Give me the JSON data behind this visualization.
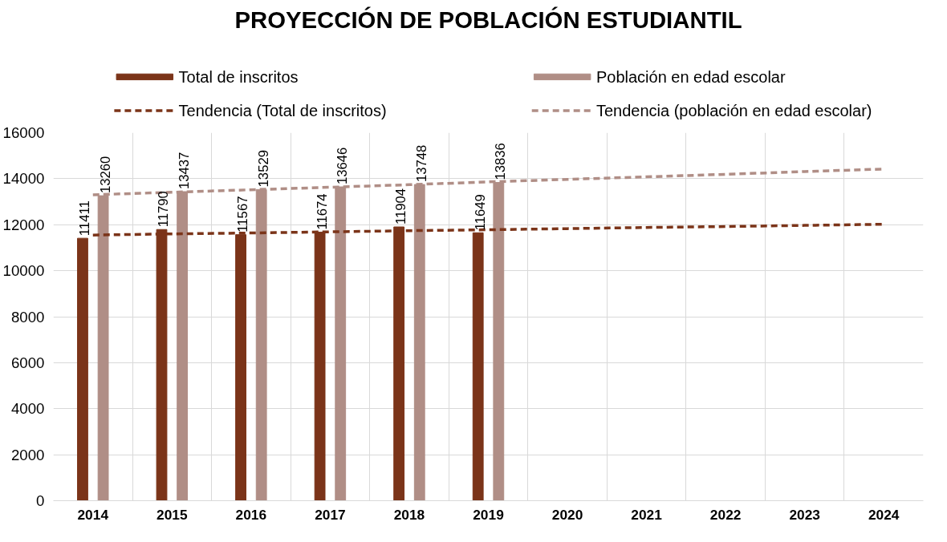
{
  "chart_data": {
    "type": "bar",
    "title": "PROYECCIÓN DE POBLACIÓN ESTUDIANTIL",
    "categories": [
      "2014",
      "2015",
      "2016",
      "2017",
      "2018",
      "2019",
      "2020",
      "2021",
      "2022",
      "2023",
      "2024"
    ],
    "series": [
      {
        "name": "Total de inscritos",
        "color": "#7b3419",
        "values": [
          11411,
          11790,
          11567,
          11674,
          11904,
          11649,
          null,
          null,
          null,
          null,
          null
        ],
        "value_labels": [
          "11411",
          "11790",
          "11567",
          "11674",
          "11904",
          "11649",
          null,
          null,
          null,
          null,
          null
        ]
      },
      {
        "name": "Población en edad escolar",
        "color": "#b08e86",
        "values": [
          13260,
          13437,
          13529,
          13646,
          13748,
          13836,
          null,
          null,
          null,
          null,
          null
        ],
        "value_labels": [
          "13260",
          "13437",
          "13529",
          "13646",
          "13748",
          "13836",
          null,
          null,
          null,
          null,
          null
        ]
      },
      {
        "name": "Tendencia (Total de inscritos)",
        "type": "line",
        "line_style": "dashed",
        "color": "#7b3419",
        "values": [
          11550,
          11600,
          11640,
          11690,
          11740,
          11780,
          11830,
          11880,
          11920,
          11970,
          12020
        ]
      },
      {
        "name": "Tendencia (población en edad escolar)",
        "type": "line",
        "line_style": "dashed",
        "color": "#b08e86",
        "values": [
          13300,
          13410,
          13520,
          13630,
          13740,
          13860,
          13970,
          14080,
          14190,
          14310,
          14420
        ]
      }
    ],
    "ylim": [
      0,
      16000
    ],
    "yticks": [
      0,
      2000,
      4000,
      6000,
      8000,
      10000,
      12000,
      14000,
      16000
    ],
    "grid": true,
    "legend": "top"
  }
}
